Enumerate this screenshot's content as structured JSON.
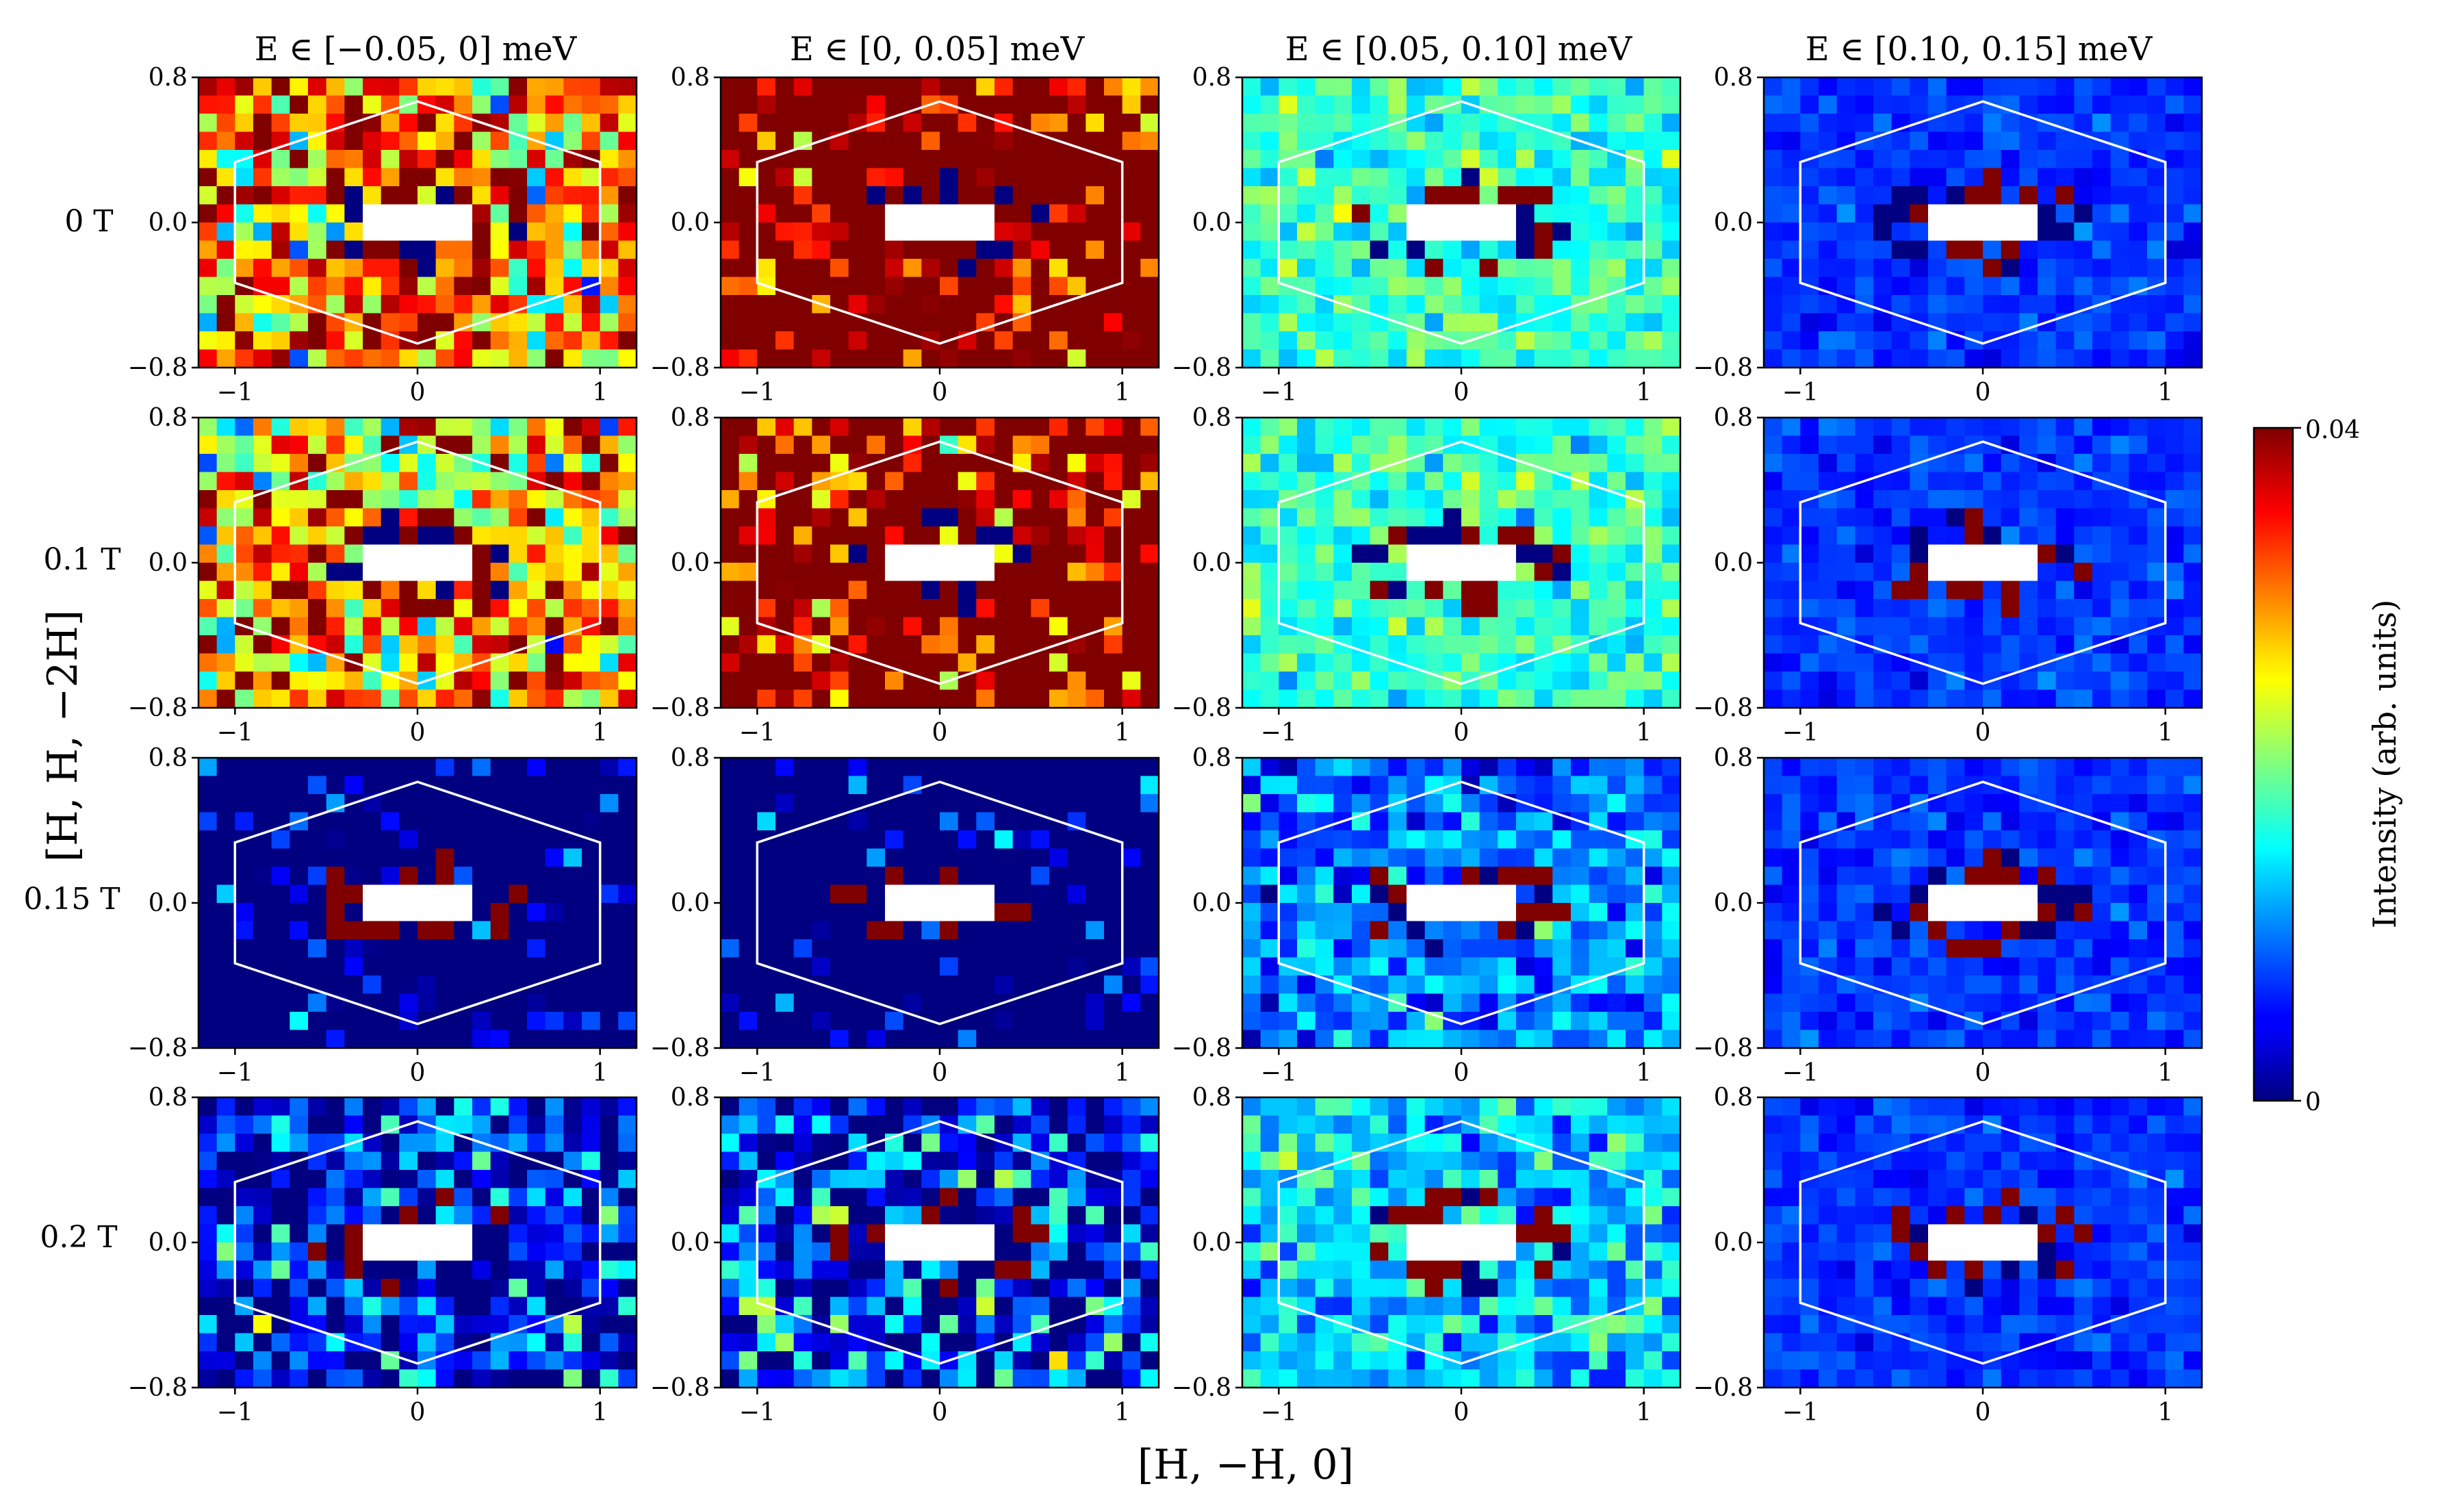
{
  "chart_data": {
    "type": "heatmap",
    "description_grid": "4 x 4 grid of 2D intensity maps",
    "column_titles": [
      "E ∈ [−0.05, 0] meV",
      "E ∈ [0, 0.05] meV",
      "E ∈ [0.05, 0.10] meV",
      "E ∈ [0.10, 0.15] meV"
    ],
    "row_labels": [
      "0 T",
      "0.1 T",
      "0.15 T",
      "0.2 T"
    ],
    "xlabel": "[H, −H, 0]",
    "ylabel": "[H, H, −2H]",
    "xlim": [
      -1.2,
      1.2
    ],
    "ylim": [
      -0.8,
      0.8
    ],
    "xticks": [
      -1,
      0,
      1
    ],
    "xtick_labels": [
      "−1",
      "0",
      "1"
    ],
    "yticks": [
      -0.8,
      0.0,
      0.8
    ],
    "ytick_labels": [
      "−0.8",
      "0.0",
      "0.8"
    ],
    "grid_bins": {
      "nx": 24,
      "ny": 16
    },
    "colorbar": {
      "label": "Intensity (arb. units)",
      "vmin": 0,
      "vmax": 0.04,
      "tick_labels": [
        "0",
        "0.04"
      ],
      "colormap": "jet"
    },
    "overlay": {
      "shape": "hexagon (Brillouin zone boundary)",
      "color": "#ffffff",
      "vertices": [
        [
          0,
          0.667
        ],
        [
          1.0,
          0.333
        ],
        [
          1.0,
          -0.333
        ],
        [
          0,
          -0.667
        ],
        [
          -1.0,
          -0.333
        ],
        [
          -1.0,
          0.333
        ]
      ]
    },
    "panel_mean_intensity": [
      [
        0.03,
        0.037,
        0.017,
        0.007
      ],
      [
        0.028,
        0.036,
        0.017,
        0.007
      ],
      [
        0.003,
        0.002,
        0.01,
        0.007
      ],
      [
        0.005,
        0.006,
        0.013,
        0.007
      ]
    ],
    "panel_noise_spread": [
      [
        0.012,
        0.01,
        0.004,
        0.002
      ],
      [
        0.013,
        0.01,
        0.004,
        0.002
      ],
      [
        0.01,
        0.009,
        0.005,
        0.002
      ],
      [
        0.01,
        0.011,
        0.005,
        0.002
      ]
    ],
    "panel_background_saturation": [
      [
        "mixed",
        "saturated-high",
        "mixed",
        "mixed"
      ],
      [
        "mixed",
        "saturated-high",
        "mixed",
        "mixed"
      ],
      [
        "saturated-low",
        "saturated-low",
        "mixed",
        "mixed"
      ],
      [
        "mixed",
        "mixed",
        "mixed",
        "mixed"
      ]
    ],
    "masked_region": {
      "description": "white mask around Q = 0 (direct beam)",
      "x_range": [
        -0.3,
        0.3
      ],
      "y_range": [
        -0.13,
        0.13
      ]
    }
  }
}
